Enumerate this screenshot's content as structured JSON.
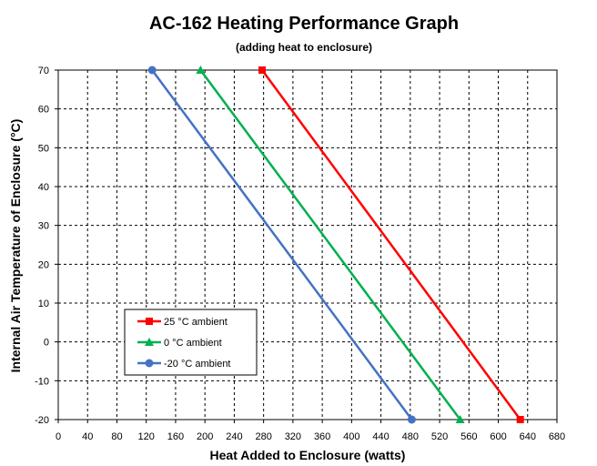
{
  "chart_data": {
    "type": "line",
    "title": "AC-162 Heating Performance Graph",
    "subtitle": "(adding heat to enclosure)",
    "xlabel": "Heat Added to Enclosure (watts)",
    "ylabel": "Internal Air Temperature of Enclosure (°C)",
    "xlim": [
      0,
      680
    ],
    "ylim": [
      -20,
      70
    ],
    "x_ticks": [
      0,
      40,
      80,
      120,
      160,
      200,
      240,
      280,
      320,
      360,
      400,
      440,
      480,
      520,
      560,
      600,
      640,
      680
    ],
    "y_ticks": [
      -20,
      -10,
      0,
      10,
      20,
      30,
      40,
      50,
      60,
      70
    ],
    "grid": true,
    "legend_position": "lower-left",
    "series": [
      {
        "name": "25 °C ambient",
        "color": "#ff0000",
        "marker": "square",
        "x": [
          278,
          630
        ],
        "y": [
          70,
          -20
        ]
      },
      {
        "name": "0 °C ambient",
        "color": "#00b050",
        "marker": "triangle",
        "x": [
          194,
          548
        ],
        "y": [
          70,
          -20
        ]
      },
      {
        "name": "-20 °C ambient",
        "color": "#4472c4",
        "marker": "circle",
        "x": [
          128,
          482
        ],
        "y": [
          70,
          -20
        ]
      }
    ]
  }
}
